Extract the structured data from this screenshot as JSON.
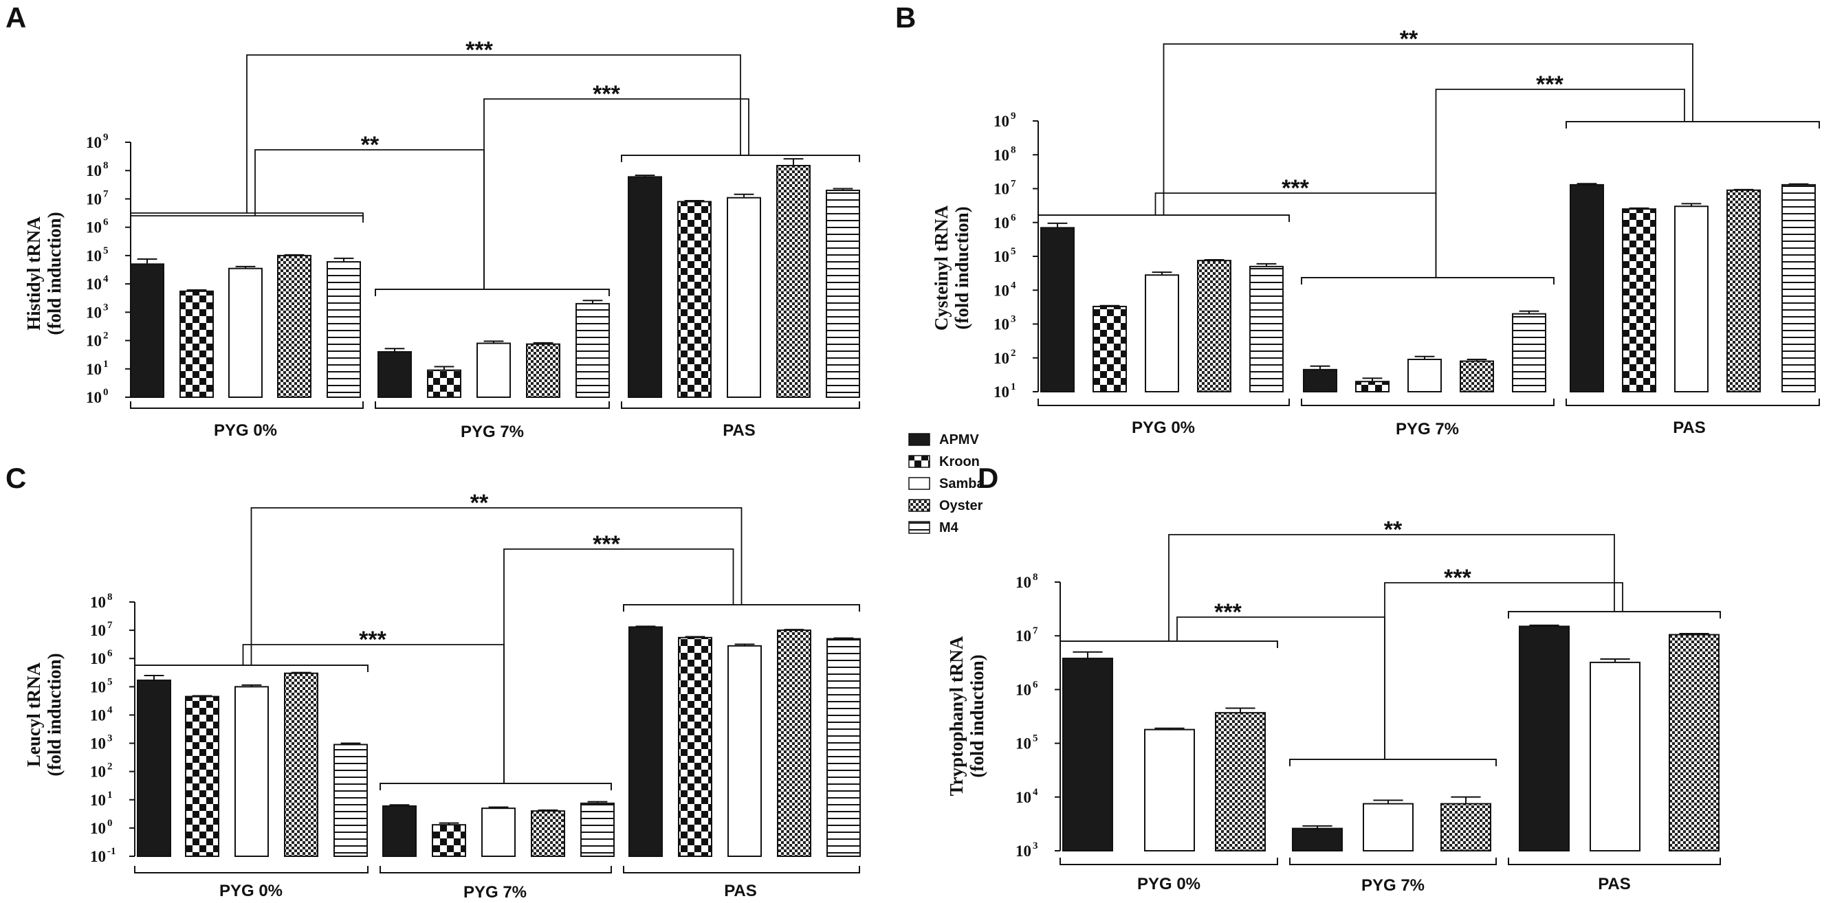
{
  "legend": [
    {
      "name": "APMV",
      "pattern": "solid"
    },
    {
      "name": "Kroon",
      "pattern": "checker"
    },
    {
      "name": "Samba",
      "pattern": "white"
    },
    {
      "name": "Oyster",
      "pattern": "finecheck"
    },
    {
      "name": "M4",
      "pattern": "hlines"
    }
  ],
  "colors": {
    "bar_dark": "#1a1a1a",
    "stroke": "#111111",
    "background": "#ffffff"
  },
  "chart_data": [
    {
      "type": "bar",
      "panel": "A",
      "ylabel_line1": "Histidyl tRNA",
      "ylabel_line2": "(fold induction)",
      "yscale": "log",
      "ylim_exp": [
        0,
        9
      ],
      "y_tick_exponents": [
        0,
        1,
        2,
        3,
        4,
        5,
        6,
        7,
        8,
        9
      ],
      "categories": [
        "PYG 0%",
        "PYG 7%",
        "PAS"
      ],
      "series": [
        {
          "name": "APMV",
          "values": [
            50000,
            40,
            60000000
          ],
          "errors": [
            25000,
            12,
            8000000
          ]
        },
        {
          "name": "Kroon",
          "values": [
            5500,
            9,
            8000000
          ],
          "errors": [
            600,
            3,
            700000
          ]
        },
        {
          "name": "Samba",
          "values": [
            35000,
            80,
            11000000
          ],
          "errors": [
            6000,
            15,
            3500000
          ]
        },
        {
          "name": "Oyster",
          "values": [
            100000,
            75,
            150000000
          ],
          "errors": [
            6000,
            8,
            110000000
          ]
        },
        {
          "name": "M4",
          "values": [
            60000,
            2000,
            20000000
          ],
          "errors": [
            20000,
            600,
            3000000
          ]
        }
      ],
      "significance": [
        {
          "label": "***",
          "from": "PYG 0%",
          "to": "PAS"
        },
        {
          "label": "**",
          "from": "PYG 0%",
          "to": "PYG 7%"
        },
        {
          "label": "***",
          "from": "PYG 7%",
          "to": "PAS"
        }
      ]
    },
    {
      "type": "bar",
      "panel": "B",
      "ylabel_line1": "Cysteinyl tRNA",
      "ylabel_line2": "(fold induction)",
      "yscale": "log",
      "ylim_exp": [
        1,
        9
      ],
      "y_tick_exponents": [
        1,
        2,
        3,
        4,
        5,
        6,
        7,
        8,
        9
      ],
      "categories": [
        "PYG 0%",
        "PYG 7%",
        "PAS"
      ],
      "series": [
        {
          "name": "APMV",
          "values": [
            700000,
            45,
            13000000
          ],
          "errors": [
            250000,
            12,
            1000000
          ]
        },
        {
          "name": "Kroon",
          "values": [
            3300,
            20,
            2500000
          ],
          "errors": [
            200,
            5,
            150000
          ]
        },
        {
          "name": "Samba",
          "values": [
            28000,
            90,
            3000000
          ],
          "errors": [
            6000,
            20,
            600000
          ]
        },
        {
          "name": "Oyster",
          "values": [
            75000,
            80,
            9000000
          ],
          "errors": [
            4000,
            10,
            400000
          ]
        },
        {
          "name": "M4",
          "values": [
            50000,
            2000,
            13000000
          ],
          "errors": [
            10000,
            400,
            700000
          ]
        }
      ],
      "significance": [
        {
          "label": "**",
          "from": "PYG 0%",
          "to": "PAS"
        },
        {
          "label": "***",
          "from": "PYG 7%",
          "to": "PAS"
        },
        {
          "label": "***",
          "from": "PYG 0%",
          "to": "PYG 7%"
        }
      ]
    },
    {
      "type": "bar",
      "panel": "C",
      "ylabel_line1": "Leucyl tRNA",
      "ylabel_line2": "(fold induction)",
      "yscale": "log",
      "ylim_exp": [
        -1,
        8
      ],
      "y_tick_exponents": [
        -1,
        0,
        1,
        2,
        3,
        4,
        5,
        6,
        7,
        8
      ],
      "categories": [
        "PYG 0%",
        "PYG 7%",
        "PAS"
      ],
      "series": [
        {
          "name": "APMV",
          "values": [
            170000,
            6,
            13000000
          ],
          "errors": [
            80000,
            0.6,
            800000
          ]
        },
        {
          "name": "Kroon",
          "values": [
            45000,
            1.3,
            5500000
          ],
          "errors": [
            3000,
            0.2,
            400000
          ]
        },
        {
          "name": "Samba",
          "values": [
            100000,
            5,
            2800000
          ],
          "errors": [
            15000,
            0.5,
            400000
          ]
        },
        {
          "name": "Oyster",
          "values": [
            300000,
            4,
            10000000
          ],
          "errors": [
            20000,
            0.3,
            600000
          ]
        },
        {
          "name": "M4",
          "values": [
            900,
            7.5,
            5000000
          ],
          "errors": [
            100,
            1,
            300000
          ]
        }
      ],
      "significance": [
        {
          "label": "**",
          "from": "PYG 0%",
          "to": "PAS"
        },
        {
          "label": "***",
          "from": "PYG 7%",
          "to": "PAS"
        },
        {
          "label": "***",
          "from": "PYG 0%",
          "to": "PYG 7%"
        }
      ]
    },
    {
      "type": "bar",
      "panel": "D",
      "ylabel_line1": "Tryptophanyl tRNA",
      "ylabel_line2": "(fold induction)",
      "yscale": "log",
      "ylim_exp": [
        3,
        8
      ],
      "y_tick_exponents": [
        3,
        4,
        5,
        6,
        7,
        8
      ],
      "categories": [
        "PYG 0%",
        "PYG 7%",
        "PAS"
      ],
      "series": [
        {
          "name": "APMV",
          "values": [
            3800000,
            2600,
            15000000
          ],
          "errors": [
            1200000,
            300,
            700000
          ]
        },
        {
          "name": "Samba",
          "values": [
            180000,
            7500,
            3200000
          ],
          "errors": [
            10000,
            1200,
            500000
          ]
        },
        {
          "name": "Oyster",
          "values": [
            370000,
            7500,
            10500000
          ],
          "errors": [
            80000,
            2500,
            500000
          ]
        }
      ],
      "significance": [
        {
          "label": "**",
          "from": "PYG 0%",
          "to": "PAS"
        },
        {
          "label": "***",
          "from": "PYG 0%",
          "to": "PYG 7%"
        },
        {
          "label": "***",
          "from": "PYG 7%",
          "to": "PAS"
        }
      ]
    }
  ]
}
